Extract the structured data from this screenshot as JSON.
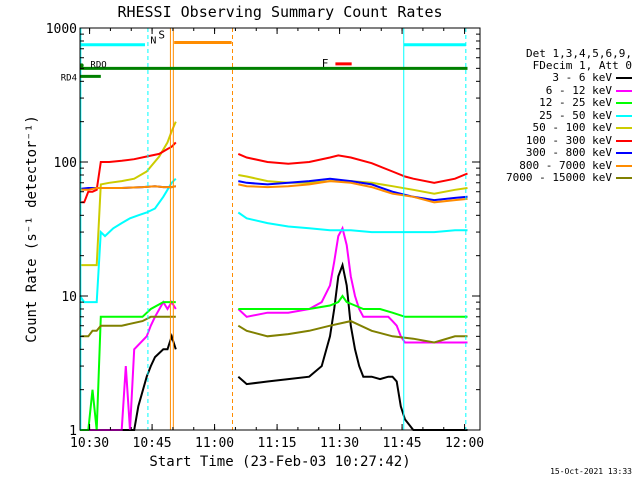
{
  "chart_data": {
    "type": "line",
    "title": "RHESSI Observing Summary Count Rates",
    "xlabel": "Start Time (23-Feb-03 10:27:42)",
    "ylabel": "Count Rate (s⁻¹ detector⁻¹)",
    "yscale": "log",
    "ylim": [
      1,
      1000
    ],
    "xlim_minutes": [
      0,
      96
    ],
    "x_ticks": [
      {
        "m": 2.3,
        "label": "10:30"
      },
      {
        "m": 17.3,
        "label": "10:45"
      },
      {
        "m": 32.3,
        "label": "11:00"
      },
      {
        "m": 47.3,
        "label": "11:15"
      },
      {
        "m": 62.3,
        "label": "11:30"
      },
      {
        "m": 77.3,
        "label": "11:45"
      },
      {
        "m": 92.3,
        "label": "12:00"
      }
    ],
    "y_ticks": [
      {
        "v": 1,
        "label": "1"
      },
      {
        "v": 10,
        "label": "10"
      },
      {
        "v": 100,
        "label": "100"
      },
      {
        "v": 1000,
        "label": "1000"
      }
    ],
    "legend_header": [
      "Det 1,3,4,5,6,9,",
      "FDecim 1, Att 0"
    ],
    "series": [
      {
        "name": "3 - 6 keV",
        "color": "#000000",
        "x": [
          0,
          5,
          10,
          13,
          14,
          16,
          17,
          18,
          20,
          21,
          22,
          23,
          38,
          40,
          45,
          50,
          55,
          58,
          60,
          61,
          62,
          63,
          64,
          65,
          66,
          67,
          68,
          70,
          72,
          74,
          75,
          76,
          77,
          78,
          80,
          85,
          90,
          93
        ],
        "y": [
          1,
          1,
          1,
          1,
          1.5,
          2.5,
          3,
          3.5,
          4,
          4,
          5,
          4,
          2.5,
          2.2,
          2.3,
          2.4,
          2.5,
          3,
          5,
          8,
          14,
          17,
          12,
          6,
          4,
          3,
          2.5,
          2.5,
          2.4,
          2.5,
          2.5,
          2.3,
          1.5,
          1.2,
          1,
          1,
          1,
          1
        ]
      },
      {
        "name": "6 - 12 keV",
        "color": "#ff00ff",
        "x": [
          0,
          5,
          10,
          11,
          12,
          13,
          16,
          17,
          18,
          20,
          21,
          22,
          23,
          38,
          40,
          45,
          50,
          55,
          58,
          60,
          61,
          62,
          63,
          64,
          65,
          66,
          67,
          68,
          70,
          72,
          74,
          75,
          76,
          77,
          78,
          80,
          85,
          90,
          93
        ],
        "y": [
          1,
          1,
          1,
          3,
          1,
          4,
          5,
          6,
          7,
          9,
          8,
          9,
          8,
          8,
          7,
          7.5,
          7.5,
          8,
          9,
          12,
          18,
          28,
          32,
          24,
          14,
          10,
          8,
          7,
          7,
          7,
          7,
          6.5,
          6,
          5,
          4.5,
          4.5,
          4.5,
          4.5,
          4.5
        ]
      },
      {
        "name": "12 - 25 keV",
        "color": "#00ff00",
        "x": [
          0,
          2,
          3,
          4,
          5,
          10,
          15,
          17,
          20,
          22,
          23,
          38,
          40,
          45,
          50,
          55,
          60,
          62,
          63,
          64,
          66,
          68,
          70,
          72,
          75,
          78,
          80,
          85,
          90,
          93
        ],
        "y": [
          1,
          1,
          2,
          1,
          7,
          7,
          7,
          8,
          9,
          9,
          9,
          8,
          8,
          8,
          8,
          8,
          8.5,
          9,
          10,
          9,
          8.5,
          8,
          8,
          8,
          7.5,
          7,
          7,
          7,
          7,
          7
        ]
      },
      {
        "name": "25 - 50 keV",
        "color": "#00ffff",
        "x": [
          0,
          1,
          2,
          3,
          4,
          5,
          6,
          7,
          8,
          10,
          12,
          14,
          16,
          18,
          20,
          22,
          23,
          38,
          40,
          45,
          50,
          55,
          60,
          65,
          70,
          75,
          80,
          85,
          90,
          93
        ],
        "y": [
          10,
          9,
          9,
          9,
          9,
          30,
          28,
          30,
          32,
          35,
          38,
          40,
          42,
          45,
          55,
          70,
          75,
          42,
          38,
          35,
          33,
          32,
          31,
          31,
          30,
          30,
          30,
          30,
          31,
          31
        ]
      },
      {
        "name": "50 - 100 keV",
        "color": "#cccc00",
        "x": [
          0,
          1,
          2,
          3,
          4,
          5,
          7,
          10,
          13,
          16,
          19,
          21,
          22,
          23,
          38,
          40,
          45,
          50,
          55,
          60,
          65,
          70,
          75,
          80,
          85,
          90,
          93
        ],
        "y": [
          17,
          17,
          17,
          17,
          17,
          68,
          70,
          72,
          75,
          85,
          110,
          140,
          170,
          200,
          80,
          78,
          72,
          70,
          70,
          72,
          72,
          70,
          66,
          62,
          58,
          62,
          64
        ]
      },
      {
        "name": "100 - 300 keV",
        "color": "#ff0000",
        "x": [
          0,
          1,
          2,
          3,
          4,
          5,
          7,
          10,
          13,
          16,
          19,
          21,
          22,
          23,
          38,
          40,
          45,
          50,
          55,
          60,
          62,
          65,
          70,
          75,
          78,
          80,
          85,
          90,
          93
        ],
        "y": [
          50,
          50,
          60,
          60,
          62,
          100,
          100,
          102,
          105,
          110,
          115,
          125,
          130,
          140,
          115,
          108,
          100,
          97,
          100,
          108,
          112,
          108,
          98,
          85,
          78,
          75,
          70,
          75,
          82
        ]
      },
      {
        "name": "300 - 800 keV",
        "color": "#0000ff",
        "x": [
          0,
          2,
          4,
          5,
          10,
          15,
          18,
          20,
          22,
          23,
          38,
          40,
          45,
          50,
          55,
          60,
          65,
          70,
          75,
          80,
          85,
          90,
          93
        ],
        "y": [
          63,
          64,
          64,
          64,
          64,
          65,
          66,
          65,
          65,
          66,
          72,
          70,
          68,
          70,
          72,
          75,
          72,
          68,
          60,
          55,
          52,
          54,
          55
        ]
      },
      {
        "name": "800 - 7000 keV",
        "color": "#ff8c00",
        "x": [
          0,
          2,
          4,
          5,
          10,
          15,
          18,
          20,
          22,
          23,
          38,
          40,
          45,
          50,
          55,
          60,
          65,
          70,
          75,
          80,
          85,
          90,
          93
        ],
        "y": [
          62,
          62,
          64,
          64,
          64,
          65,
          66,
          65,
          65,
          66,
          68,
          66,
          65,
          66,
          68,
          72,
          70,
          65,
          58,
          55,
          50,
          52,
          53
        ]
      },
      {
        "name": "7000 - 15000 keV",
        "color": "#808000",
        "x": [
          0,
          2,
          3,
          4,
          5,
          8,
          10,
          15,
          17,
          20,
          23,
          38,
          40,
          45,
          50,
          55,
          60,
          65,
          70,
          75,
          80,
          85,
          90,
          93
        ],
        "y": [
          5,
          5,
          5.5,
          5.5,
          6,
          6,
          6,
          6.5,
          7,
          7,
          7,
          6,
          5.5,
          5,
          5.2,
          5.5,
          6,
          6.5,
          5.5,
          5,
          4.8,
          4.5,
          5,
          5
        ]
      }
    ],
    "attenuator_line": {
      "label1": "RD4",
      "label2": "RDO",
      "color": "#008000",
      "y": 500
    },
    "flags": [
      {
        "label": "N",
        "color": "#00ffff",
        "y": 750
      },
      {
        "label": "S",
        "color": "#ff8c00",
        "y": 780
      },
      {
        "label": "F",
        "color": "#ff0000",
        "y": 540
      }
    ]
  },
  "footer": "15-Oct-2021 13:33"
}
